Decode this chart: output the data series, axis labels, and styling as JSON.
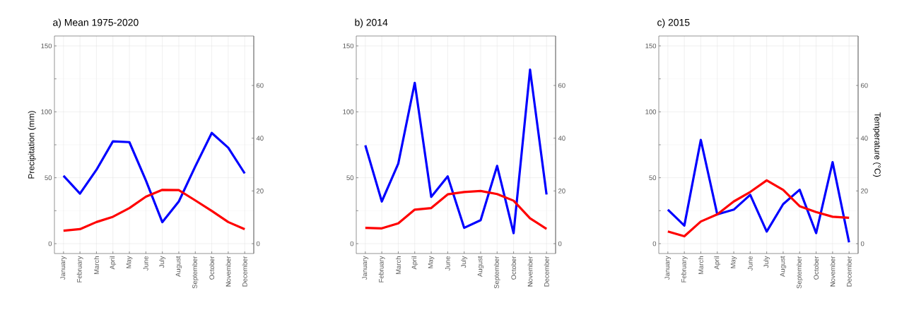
{
  "chart_data": [
    {
      "type": "line",
      "title": "a) Mean 1975-2020",
      "ylabel": "Precipitation (mm)",
      "categories": [
        "January",
        "February",
        "March",
        "April",
        "May",
        "June",
        "July",
        "August",
        "September",
        "October",
        "November",
        "December"
      ],
      "series": [
        {
          "color": "#0000ff",
          "values": [
            51.5,
            38,
            56,
            77.6,
            77,
            48,
            16.3,
            32,
            58.6,
            84,
            72.8,
            53.3
          ]
        },
        {
          "color": "#ff0000",
          "axis": "y2",
          "values": [
            4.9,
            5.5,
            8.2,
            10.2,
            13.5,
            17.8,
            20.4,
            20.3,
            16.4,
            12.4,
            8.2,
            5.5
          ]
        }
      ],
      "ylim": [
        -7.5,
        157.5
      ],
      "yticks": [
        0,
        50,
        100,
        150
      ],
      "y2lim": [
        -3.75,
        78.75
      ],
      "y2ticks": [
        0,
        20,
        40,
        60
      ],
      "grid": true
    },
    {
      "type": "line",
      "title": "b) 2014",
      "categories": [
        "January",
        "February",
        "March",
        "April",
        "May",
        "June",
        "July",
        "August",
        "September",
        "October",
        "November",
        "December"
      ],
      "series": [
        {
          "color": "#0000ff",
          "values": [
            74.6,
            32,
            60.7,
            122,
            35.5,
            51,
            12,
            17.8,
            59,
            8,
            132,
            37.3
          ]
        },
        {
          "color": "#ff0000",
          "axis": "y2",
          "values": [
            6.0,
            5.8,
            7.7,
            12.9,
            13.5,
            18.7,
            19.6,
            20,
            18.8,
            16.3,
            9.6,
            5.6
          ]
        }
      ],
      "ylim": [
        -7.5,
        157.5
      ],
      "yticks": [
        0,
        50,
        100,
        150
      ],
      "y2lim": [
        -3.75,
        78.75
      ],
      "y2ticks": [
        0,
        20,
        40,
        60
      ],
      "grid": true
    },
    {
      "type": "line",
      "title": "c) 2015",
      "y2label": "Temperature (°C)",
      "categories": [
        "January",
        "February",
        "March",
        "April",
        "May",
        "June",
        "July",
        "August",
        "September",
        "October",
        "November",
        "December"
      ],
      "series": [
        {
          "color": "#0000ff",
          "values": [
            25.8,
            13.7,
            78.7,
            22.2,
            25.8,
            37,
            9.2,
            30,
            40.9,
            8,
            61.8,
            1
          ]
        },
        {
          "color": "#ff0000",
          "axis": "y2",
          "values": [
            4.6,
            2.8,
            8.4,
            11.1,
            16,
            19.6,
            24,
            20.4,
            14.2,
            12,
            10.2,
            9.8
          ]
        }
      ],
      "ylim": [
        -7.5,
        157.5
      ],
      "yticks": [
        0,
        50,
        100,
        150
      ],
      "y2lim": [
        -3.75,
        78.75
      ],
      "y2ticks": [
        0,
        20,
        40,
        60
      ],
      "grid": true
    }
  ]
}
